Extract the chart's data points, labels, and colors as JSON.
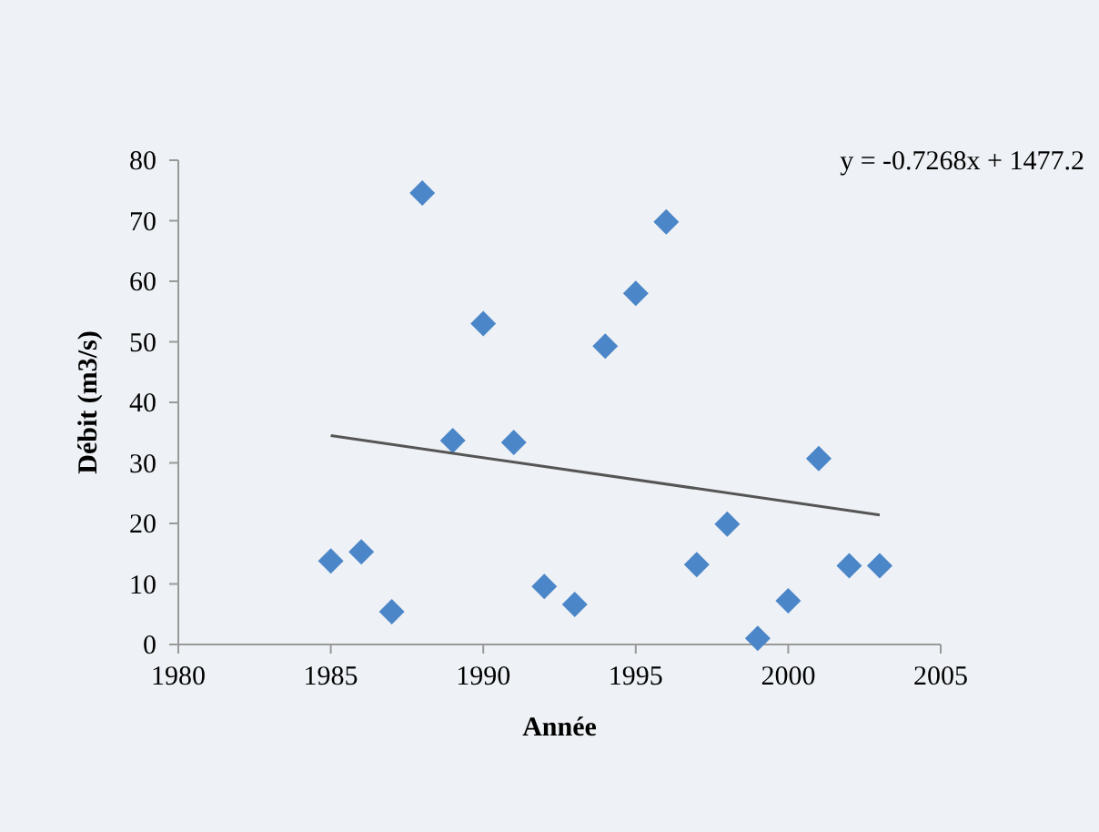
{
  "chart_data": {
    "type": "scatter",
    "xlabel": "Année",
    "ylabel": "Débit (m3/s)",
    "annotations": [
      "y = -0.7268x + 1477.2"
    ],
    "xlim": [
      1980,
      2005
    ],
    "xticks": [
      1980,
      1985,
      1990,
      1995,
      2000,
      2005
    ],
    "ylim": [
      0,
      80
    ],
    "yticks": [
      0,
      10,
      20,
      30,
      40,
      50,
      60,
      70,
      80
    ],
    "grid": false,
    "marker": "diamond",
    "series": [
      {
        "color": "#4a86c8",
        "x": [
          1985,
          1986,
          1987,
          1988,
          1989,
          1990,
          1991,
          1992,
          1993,
          1994,
          1995,
          1996,
          1997,
          1998,
          1999,
          2000,
          2001,
          2002,
          2003
        ],
        "values": [
          13.8,
          15.3,
          5.4,
          74.6,
          33.7,
          53,
          33.4,
          9.6,
          6.6,
          49.3,
          58,
          69.8,
          13.2,
          19.9,
          1,
          7.2,
          30.7,
          13,
          13
        ]
      },
      {
        "type": "line",
        "color": "#555555",
        "line_style": "solid",
        "marker": "none",
        "x": [
          1985,
          2003
        ],
        "values": [
          34.5,
          21.4
        ]
      }
    ]
  }
}
